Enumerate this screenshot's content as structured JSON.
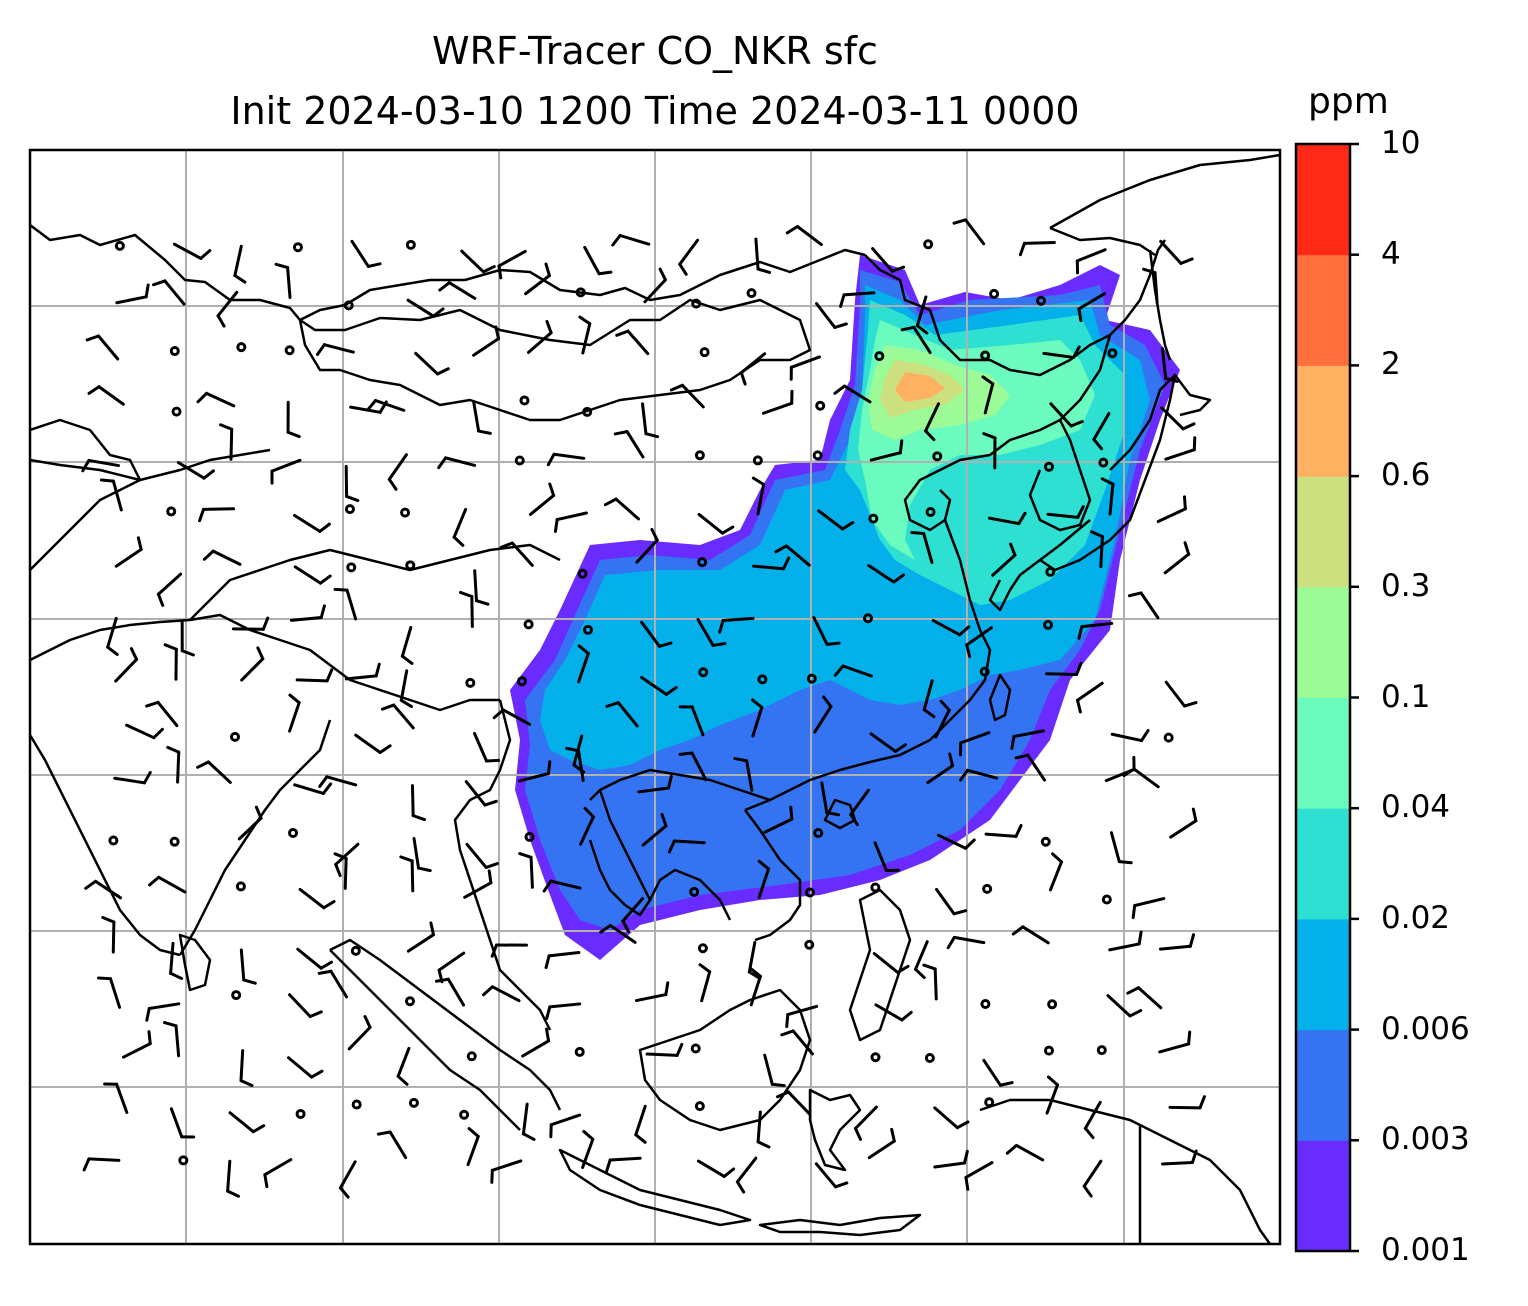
{
  "title": {
    "line1": "WRF-Tracer CO_NKR sfc",
    "line2": "Init 2024-03-10 1200 Time 2024-03-11 0000"
  },
  "colorbar": {
    "unit": "ppm",
    "levels": [
      "0.001",
      "0.003",
      "0.006",
      "0.02",
      "0.04",
      "0.1",
      "0.3",
      "0.6",
      "2",
      "4",
      "10"
    ],
    "colors": [
      "#6a2bff",
      "#3474f2",
      "#04b0ea",
      "#2ee0d2",
      "#6bfbbe",
      "#9cfb97",
      "#cde07f",
      "#feb160",
      "#ff703c",
      "#ff2a16"
    ]
  },
  "map": {
    "frame_color": "#000000",
    "gridline_color": "#b0b0b0",
    "coastline_color": "#000000",
    "wind_barb_color": "#000000"
  }
}
